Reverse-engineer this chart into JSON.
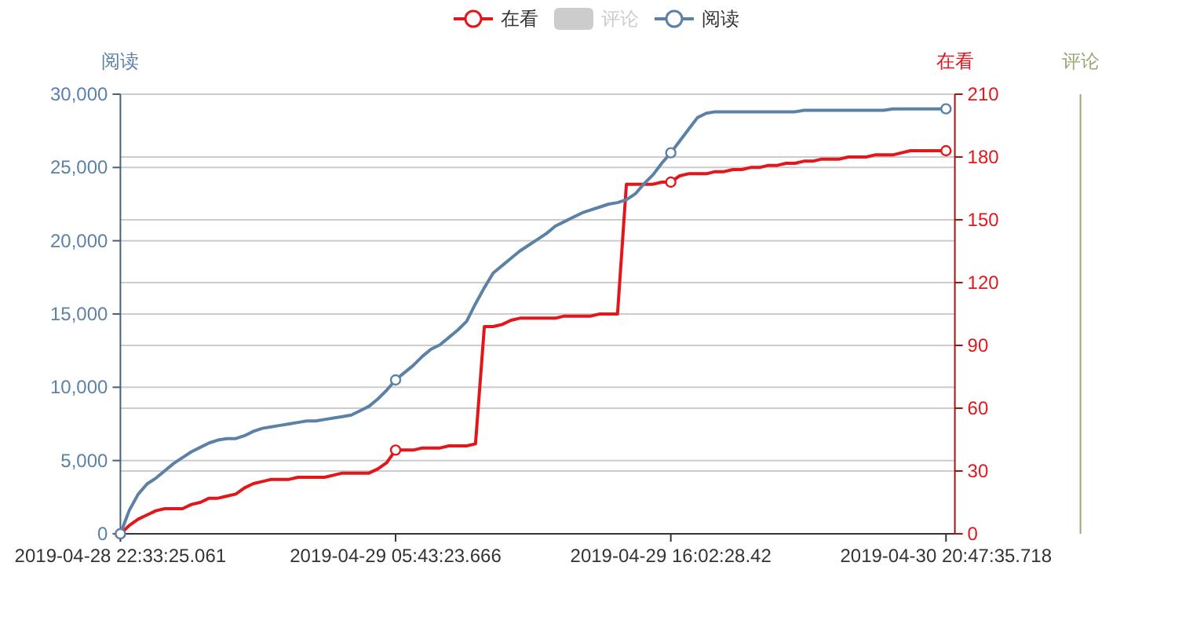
{
  "chart_data": {
    "type": "line",
    "categories": [
      "2019-04-28 22:33:25.061",
      null,
      null,
      null,
      null,
      null,
      null,
      null,
      null,
      null,
      null,
      null,
      null,
      null,
      null,
      null,
      null,
      null,
      null,
      null,
      null,
      null,
      null,
      null,
      null,
      null,
      null,
      null,
      null,
      null,
      null,
      "2019-04-29 05:43:23.666",
      null,
      null,
      null,
      null,
      null,
      null,
      null,
      null,
      null,
      null,
      null,
      null,
      null,
      null,
      null,
      null,
      null,
      null,
      null,
      null,
      null,
      null,
      null,
      null,
      null,
      null,
      null,
      null,
      null,
      null,
      "2019-04-29 16:02:28.42",
      null,
      null,
      null,
      null,
      null,
      null,
      null,
      null,
      null,
      null,
      null,
      null,
      null,
      null,
      null,
      null,
      null,
      null,
      null,
      null,
      null,
      null,
      null,
      null,
      null,
      null,
      null,
      null,
      null,
      null,
      "2019-04-30 20:47:35.718",
      null
    ],
    "series": [
      {
        "name": "在看",
        "axis": "y2",
        "color": "#e3161c",
        "values": [
          0,
          4,
          7,
          9,
          11,
          12,
          12,
          12,
          14,
          15,
          17,
          17,
          18,
          19,
          22,
          24,
          25,
          26,
          26,
          26,
          27,
          27,
          27,
          27,
          28,
          29,
          29,
          29,
          29,
          31,
          34,
          40,
          40,
          40,
          41,
          41,
          41,
          42,
          42,
          42,
          43,
          99,
          99,
          100,
          102,
          103,
          103,
          103,
          103,
          103,
          104,
          104,
          104,
          104,
          105,
          105,
          105,
          167,
          167,
          167,
          167,
          168,
          168,
          171,
          172,
          172,
          172,
          173,
          173,
          174,
          174,
          175,
          175,
          176,
          176,
          177,
          177,
          178,
          178,
          179,
          179,
          179,
          180,
          180,
          180,
          181,
          181,
          181,
          182,
          183,
          183,
          183,
          183,
          183,
          null
        ]
      },
      {
        "name": "评论",
        "type": "bar",
        "color": "#cccccc",
        "values": [
          null,
          null,
          null,
          null,
          null,
          null,
          null,
          null,
          null,
          null,
          null,
          null,
          null,
          null,
          null,
          null,
          null,
          null,
          null,
          null,
          null,
          null,
          null,
          null,
          null,
          null,
          null,
          null,
          null,
          null,
          null,
          null,
          null,
          null,
          null,
          null,
          null,
          null,
          null,
          null,
          null,
          null,
          null,
          null,
          null,
          null,
          null,
          null,
          null,
          null,
          null,
          null,
          null,
          null,
          null,
          null,
          null,
          null,
          null,
          null,
          null,
          null,
          null,
          null,
          null,
          null,
          null,
          null,
          null,
          null,
          null,
          null,
          null,
          null,
          null,
          null,
          null,
          null,
          null,
          null,
          null,
          null,
          null,
          null,
          null,
          null,
          null,
          null,
          null,
          null,
          null,
          null,
          null,
          null,
          null
        ]
      },
      {
        "name": "阅读",
        "axis": "y",
        "color": "#5b82a6",
        "values": [
          0,
          1600,
          2700,
          3400,
          3800,
          4300,
          4800,
          5200,
          5600,
          5900,
          6200,
          6400,
          6500,
          6500,
          6700,
          7000,
          7200,
          7300,
          7400,
          7500,
          7600,
          7700,
          7700,
          7800,
          7900,
          8000,
          8100,
          8400,
          8700,
          9200,
          9800,
          10500,
          11000,
          11500,
          12100,
          12600,
          12900,
          13400,
          13900,
          14500,
          15700,
          16800,
          17800,
          18300,
          18800,
          19300,
          19700,
          20100,
          20500,
          21000,
          21300,
          21600,
          21900,
          22100,
          22300,
          22500,
          22600,
          22800,
          23200,
          23900,
          24500,
          25300,
          26000,
          26800,
          27600,
          28400,
          28700,
          28800,
          28800,
          28800,
          28800,
          28800,
          28800,
          28800,
          28800,
          28800,
          28800,
          28900,
          28900,
          28900,
          28900,
          28900,
          28900,
          28900,
          28900,
          28900,
          28900,
          29000,
          29000,
          29000,
          29000,
          29000,
          29000,
          29000,
          null
        ]
      },
      {
        "type": "scatter",
        "axis": "y2",
        "color": "#e3161c",
        "marker": "circle",
        "values": [
          0,
          null,
          null,
          null,
          null,
          null,
          null,
          null,
          null,
          null,
          null,
          null,
          null,
          null,
          null,
          null,
          null,
          null,
          null,
          null,
          null,
          null,
          null,
          null,
          null,
          null,
          null,
          null,
          null,
          null,
          null,
          40,
          null,
          null,
          null,
          null,
          null,
          null,
          null,
          null,
          null,
          null,
          null,
          null,
          null,
          null,
          null,
          null,
          null,
          null,
          null,
          null,
          null,
          null,
          null,
          null,
          null,
          null,
          null,
          null,
          null,
          null,
          168,
          null,
          null,
          null,
          null,
          null,
          null,
          null,
          null,
          null,
          null,
          null,
          null,
          null,
          null,
          null,
          null,
          null,
          null,
          null,
          null,
          null,
          null,
          null,
          null,
          null,
          null,
          null,
          null,
          null,
          null,
          183,
          null
        ]
      },
      {
        "type": "scatter",
        "axis": "y",
        "color": "#5b82a6",
        "marker": "circle",
        "values": [
          0,
          null,
          null,
          null,
          null,
          null,
          null,
          null,
          null,
          null,
          null,
          null,
          null,
          null,
          null,
          null,
          null,
          null,
          null,
          null,
          null,
          null,
          null,
          null,
          null,
          null,
          null,
          null,
          null,
          null,
          null,
          10500,
          null,
          null,
          null,
          null,
          null,
          null,
          null,
          null,
          null,
          null,
          null,
          null,
          null,
          null,
          null,
          null,
          null,
          null,
          null,
          null,
          null,
          null,
          null,
          null,
          null,
          null,
          null,
          null,
          null,
          null,
          26000,
          null,
          null,
          null,
          null,
          null,
          null,
          null,
          null,
          null,
          null,
          null,
          null,
          null,
          null,
          null,
          null,
          null,
          null,
          null,
          null,
          null,
          null,
          null,
          null,
          null,
          null,
          null,
          null,
          null,
          null,
          29000,
          null
        ]
      }
    ],
    "ylabel": "阅读",
    "y2label": "在看",
    "y3label": "评论",
    "ylim": [
      0,
      30000
    ],
    "yticks": [
      0,
      {
        "value": 5000,
        "label": "5,000"
      },
      {
        "value": 10000,
        "label": "10,000"
      },
      {
        "value": 15000,
        "label": "15,000"
      },
      {
        "value": 20000,
        "label": "20,000"
      },
      {
        "value": 25000,
        "label": "25,000"
      },
      {
        "value": 30000,
        "label": "30,000"
      }
    ],
    "y2lim": [
      0,
      210
    ],
    "y2ticks": [
      0,
      30,
      60,
      90,
      120,
      150,
      180,
      210
    ],
    "grid": "y",
    "legend": "top",
    "line_style": "solid"
  }
}
